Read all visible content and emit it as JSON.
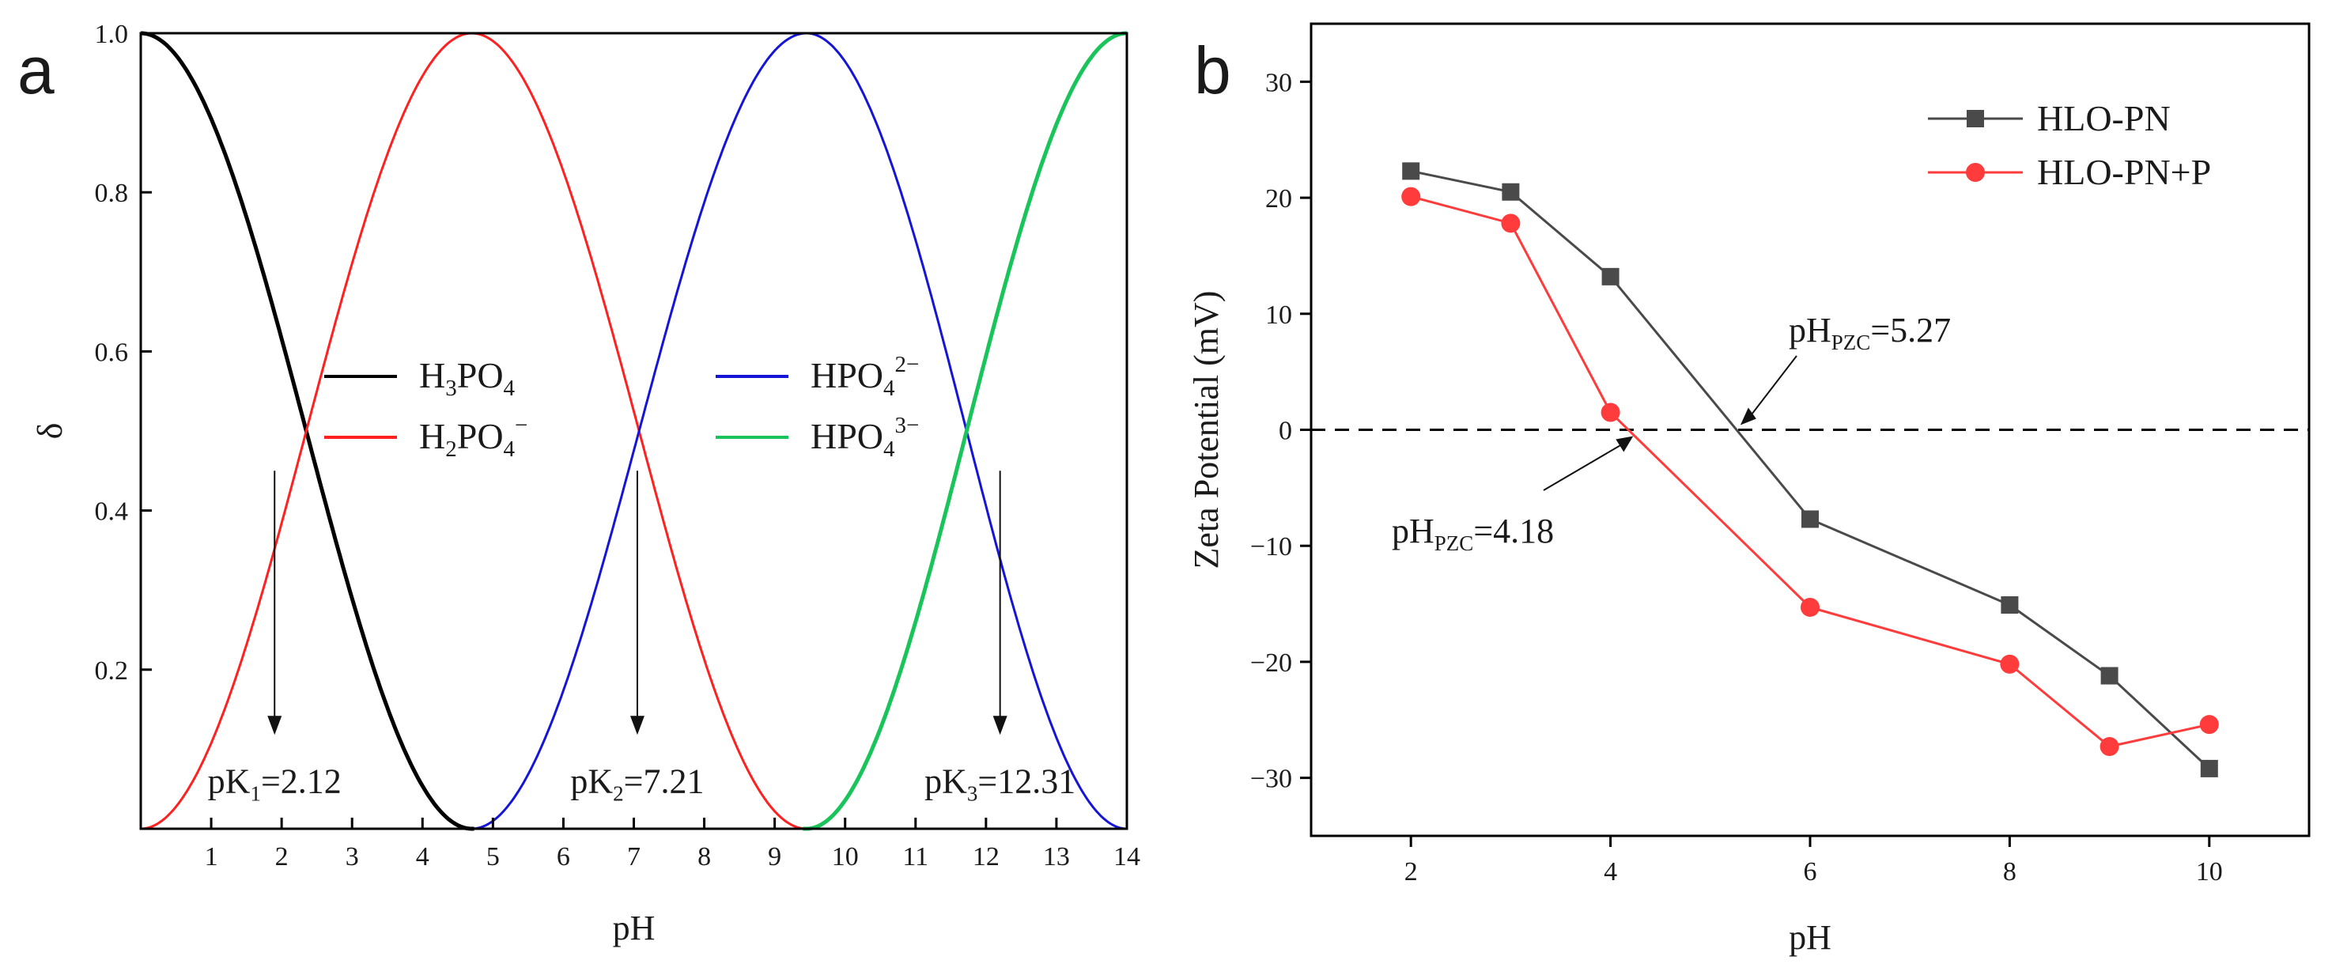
{
  "chart_data": [
    {
      "type": "line",
      "panel": "a",
      "xlabel": "pH",
      "ylabel": "δ",
      "xlim": [
        0,
        14
      ],
      "ylim": [
        0,
        1.0
      ],
      "xticks": [
        "1",
        "2",
        "3",
        "4",
        "5",
        "6",
        "7",
        "8",
        "9",
        "10",
        "11",
        "12",
        "13",
        "14"
      ],
      "yticks": [
        "0.2",
        "0.4",
        "0.6",
        "0.8",
        "1.0"
      ],
      "pKa": [
        2.12,
        7.21,
        12.31
      ],
      "series": [
        {
          "name": "H3PO4",
          "label_main": "H",
          "label_sub1": "3",
          "label_mid": "PO",
          "label_sub2": "4",
          "label_sup": "",
          "color": "#000000"
        },
        {
          "name": "H2PO4-",
          "label_main": "H",
          "label_sub1": "2",
          "label_mid": "PO",
          "label_sub2": "4",
          "label_sup": "−",
          "color": "#ff2020"
        },
        {
          "name": "HPO4 2-",
          "label_main": "HPO",
          "label_sub1": "",
          "label_mid": "",
          "label_sub2": "4",
          "label_sup": "2−",
          "color": "#1515d8"
        },
        {
          "name": "HPO4 3-",
          "label_main": "HPO",
          "label_sub1": "",
          "label_mid": "",
          "label_sub2": "4",
          "label_sup": "3−",
          "color": "#19c45a"
        }
      ],
      "annotations": [
        {
          "pre": "pK",
          "sub": "1",
          "post": "=2.12",
          "x": 1.9
        },
        {
          "pre": "pK",
          "sub": "2",
          "post": "=7.21",
          "x": 7.05
        },
        {
          "pre": "pK",
          "sub": "3",
          "post": "=12.31",
          "x": 12.2
        }
      ]
    },
    {
      "type": "line",
      "panel": "b",
      "xlabel": "pH",
      "ylabel": "Zeta Potential (mV)",
      "xlim": [
        1,
        11
      ],
      "ylim": [
        -35,
        35
      ],
      "xticks": [
        2,
        4,
        6,
        8,
        10
      ],
      "yticks": [
        -30,
        -20,
        -10,
        0,
        10,
        20,
        30
      ],
      "series": [
        {
          "name": "HLO-PN",
          "marker": "square",
          "color": "#4a4a4a",
          "x": [
            2,
            3,
            4,
            6,
            8,
            9,
            10
          ],
          "y": [
            22.3,
            20.5,
            13.2,
            -7.7,
            -15.1,
            -21.2,
            -29.2
          ]
        },
        {
          "name": "HLO-PN+P",
          "marker": "circle",
          "color": "#ff3b3b",
          "x": [
            2,
            3,
            4,
            6,
            8,
            9,
            10
          ],
          "y": [
            20.1,
            17.8,
            1.5,
            -15.3,
            -20.2,
            -27.3,
            -25.4
          ]
        }
      ],
      "reference_line_y": 0,
      "annotations": [
        {
          "pre": "pH",
          "sub": "PZC",
          "post": "=5.27",
          "x": 5.27
        },
        {
          "pre": "pH",
          "sub": "PZC",
          "post": "=4.18",
          "x": 4.18
        }
      ]
    }
  ],
  "panel_labels": [
    "a",
    "b"
  ]
}
